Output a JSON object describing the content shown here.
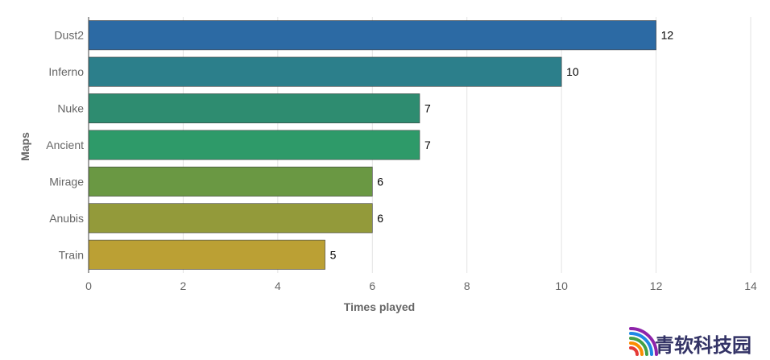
{
  "chart_data": {
    "type": "bar",
    "orientation": "horizontal",
    "categories": [
      "Dust2",
      "Inferno",
      "Nuke",
      "Ancient",
      "Mirage",
      "Anubis",
      "Train"
    ],
    "values": [
      12,
      10,
      7,
      7,
      6,
      6,
      5
    ],
    "colors": [
      "#2c6aa4",
      "#2c7f8b",
      "#2e8c70",
      "#2e9a69",
      "#6a9843",
      "#939a3a",
      "#bba034"
    ],
    "xlabel": "Times played",
    "ylabel": "Maps",
    "xlim": [
      0,
      14
    ],
    "xticks": [
      "0",
      "2",
      "4",
      "6",
      "8",
      "10",
      "12",
      "14"
    ],
    "grid": true,
    "show_data_labels": true
  },
  "logo": {
    "text": "青软科技园",
    "colors": [
      "#e53935",
      "#fb8c00",
      "#43a047",
      "#1e88e5",
      "#8e24aa"
    ]
  }
}
